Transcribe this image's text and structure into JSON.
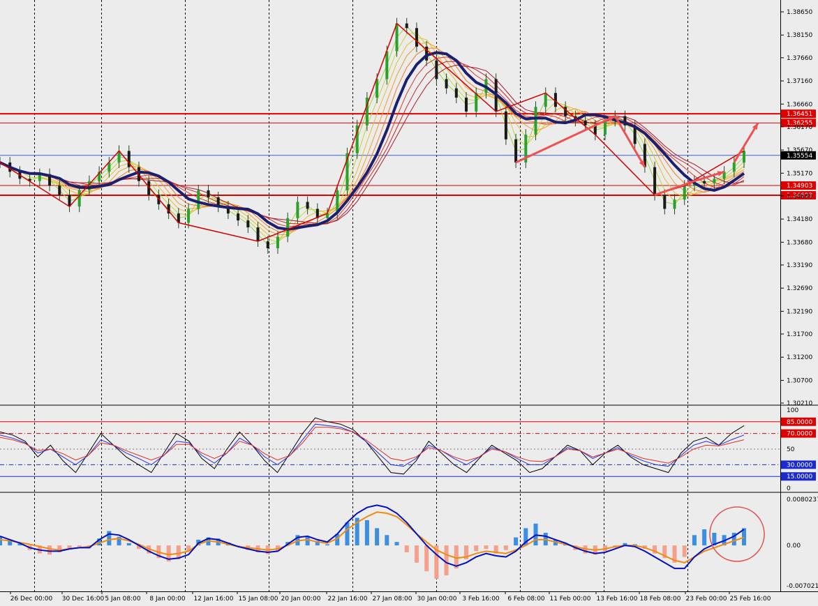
{
  "chart_data": [
    {
      "type": "candlestick",
      "symbol_panel": "price",
      "y_ticks": [
        "1.38650",
        "1.38150",
        "1.37660",
        "1.37160",
        "1.36660",
        "1.36170",
        "1.35670",
        "1.35170",
        "1.34680",
        "1.34180",
        "1.33680",
        "1.33190",
        "1.32690",
        "1.32190",
        "1.31700",
        "1.31200",
        "1.30700",
        "1.30210"
      ],
      "ylim": [
        1.3021,
        1.3865
      ],
      "current_price": "1.35554",
      "levels": [
        {
          "label": "1.36451",
          "value": 1.36451,
          "style": "thick"
        },
        {
          "label": "1.36255",
          "value": 1.36255,
          "style": "thin"
        },
        {
          "label": "1.34903",
          "value": 1.34903,
          "style": "thin"
        },
        {
          "label": "1.34693",
          "value": 1.34693,
          "style": "thick"
        }
      ],
      "x_labels": [
        "26 Dec 00:00",
        "30 Dec 16:00",
        "5 Jan 08:00",
        "8 Jan 00:00",
        "12 Jan 16:00",
        "15 Jan 08:00",
        "20 Jan 00:00",
        "22 Jan 16:00",
        "27 Jan 08:00",
        "30 Jan 00:00",
        "3 Feb 16:00",
        "6 Feb 08:00",
        "11 Feb 00:00",
        "13 Feb 16:00",
        "18 Feb 08:00",
        "23 Feb 00:00",
        "25 Feb 16:00"
      ],
      "close_series": [
        1.354,
        1.352,
        1.3505,
        1.35,
        1.3515,
        1.349,
        1.347,
        1.3445,
        1.348,
        1.35,
        1.352,
        1.354,
        1.3565,
        1.353,
        1.35,
        1.347,
        1.345,
        1.343,
        1.341,
        1.344,
        1.348,
        1.3465,
        1.3445,
        1.343,
        1.3415,
        1.34,
        1.337,
        1.3355,
        1.338,
        1.342,
        1.3455,
        1.344,
        1.342,
        1.343,
        1.348,
        1.356,
        1.362,
        1.368,
        1.372,
        1.378,
        1.384,
        1.383,
        1.379,
        1.376,
        1.372,
        1.37,
        1.368,
        1.365,
        1.369,
        1.372,
        1.365,
        1.359,
        1.354,
        1.36,
        1.366,
        1.369,
        1.366,
        1.364,
        1.363,
        1.362,
        1.36,
        1.363,
        1.364,
        1.362,
        1.358,
        1.353,
        1.347,
        1.344,
        1.346,
        1.349,
        1.35,
        1.3495,
        1.3505,
        1.352,
        1.354,
        1.3565
      ]
    },
    {
      "type": "line",
      "symbol_panel": "stochastic",
      "y_ticks": [
        "100",
        "50",
        "0"
      ],
      "ylim": [
        0,
        100
      ],
      "levels": [
        {
          "label": "85.0000",
          "value": 85
        },
        {
          "label": "70.0000",
          "value": 70
        },
        {
          "label": "30.0000",
          "value": 30
        },
        {
          "label": "15.0000",
          "value": 15
        }
      ],
      "series_black": [
        72,
        68,
        60,
        40,
        55,
        35,
        20,
        45,
        70,
        55,
        40,
        30,
        20,
        45,
        70,
        60,
        38,
        25,
        50,
        72,
        55,
        35,
        20,
        45,
        70,
        90,
        85,
        82,
        75,
        60,
        40,
        20,
        18,
        35,
        60,
        45,
        30,
        20,
        38,
        55,
        45,
        35,
        20,
        25,
        40,
        55,
        48,
        30,
        45,
        55,
        40,
        30,
        25,
        20,
        45,
        60,
        65,
        55,
        70,
        80
      ],
      "series_blue": [
        68,
        64,
        58,
        45,
        50,
        40,
        30,
        42,
        62,
        55,
        45,
        38,
        30,
        42,
        60,
        58,
        42,
        32,
        45,
        64,
        55,
        40,
        30,
        42,
        62,
        82,
        80,
        78,
        72,
        60,
        45,
        30,
        28,
        38,
        55,
        48,
        38,
        30,
        40,
        52,
        47,
        38,
        30,
        30,
        40,
        52,
        48,
        38,
        45,
        52,
        42,
        35,
        30,
        28,
        42,
        55,
        60,
        55,
        62,
        68
      ],
      "series_red": [
        65,
        62,
        57,
        48,
        50,
        44,
        36,
        42,
        58,
        55,
        48,
        42,
        36,
        42,
        56,
        56,
        45,
        38,
        45,
        60,
        55,
        44,
        36,
        42,
        58,
        78,
        78,
        76,
        72,
        62,
        50,
        38,
        35,
        40,
        52,
        48,
        40,
        35,
        40,
        50,
        47,
        40,
        35,
        34,
        40,
        50,
        48,
        40,
        45,
        50,
        44,
        38,
        35,
        32,
        40,
        50,
        55,
        54,
        58,
        62
      ]
    },
    {
      "type": "histogram",
      "symbol_panel": "macd",
      "y_ticks": [
        "0.0080237",
        "0.00",
        "-0.007021"
      ],
      "ylim": [
        -0.007021,
        0.0080237
      ],
      "histogram": [
        0.0015,
        0.001,
        0.0003,
        -0.0008,
        -0.0014,
        -0.0016,
        -0.0012,
        -0.0006,
        -0.0002,
        -0.0005,
        0.0012,
        0.0025,
        0.0015,
        0.0004,
        -0.0006,
        -0.0014,
        -0.0022,
        -0.0028,
        -0.0024,
        -0.001,
        0.001,
        0.0014,
        0.0012,
        0.0005,
        -0.0002,
        -0.0008,
        -0.0012,
        -0.0015,
        -0.001,
        0.0006,
        0.0018,
        0.0016,
        0.0008,
        0.0002,
        0.002,
        0.004,
        0.0048,
        0.0044,
        0.003,
        0.0018,
        0.0006,
        -0.0012,
        -0.003,
        -0.0045,
        -0.0058,
        -0.0052,
        -0.004,
        -0.0024,
        -0.001,
        -0.0006,
        -0.0014,
        -0.0008,
        0.0014,
        0.003,
        0.0038,
        0.0022,
        0.001,
        0.0004,
        -0.0008,
        -0.0014,
        -0.0016,
        -0.001,
        -0.0004,
        0.0004,
        0.0002,
        -0.0006,
        -0.0014,
        -0.0022,
        -0.003,
        -0.002,
        0.0018,
        0.0028,
        0.0022,
        0.0018,
        0.0022,
        0.003
      ],
      "signal_line": [
        0.001,
        0.0008,
        0.0005,
        0.0002,
        -0.0002,
        -0.0006,
        -0.0008,
        -0.0006,
        -0.0004,
        -0.0002,
        0.0004,
        0.001,
        0.0012,
        0.0008,
        0.0002,
        -0.0006,
        -0.0012,
        -0.0016,
        -0.0014,
        -0.001,
        0.0002,
        0.0008,
        0.0006,
        0.0002,
        -0.0002,
        -0.0004,
        -0.0006,
        -0.0008,
        -0.0006,
        0.0,
        0.0008,
        0.001,
        0.0006,
        0.0004,
        0.0012,
        0.0028,
        0.004,
        0.005,
        0.0058,
        0.0056,
        0.005,
        0.0036,
        0.002,
        0.0006,
        -0.0008,
        -0.0016,
        -0.0022,
        -0.002,
        -0.0014,
        -0.001,
        -0.0012,
        -0.0014,
        -0.0008,
        0.0,
        0.001,
        0.001,
        0.0006,
        0.0002,
        -0.0002,
        -0.0006,
        -0.0008,
        -0.0006,
        -0.0002,
        0.0,
        0.0,
        -0.0004,
        -0.001,
        -0.0018,
        -0.0026,
        -0.003,
        -0.002,
        -0.001,
        -0.0004,
        0.0002,
        0.0008,
        0.0014
      ],
      "macd_line": [
        0.0016,
        0.001,
        0.0004,
        -0.0004,
        -0.0008,
        -0.001,
        -0.001,
        -0.0006,
        -0.0004,
        -0.0004,
        0.001,
        0.002,
        0.0018,
        0.001,
        0.0,
        -0.001,
        -0.0018,
        -0.0024,
        -0.0022,
        -0.0016,
        0.0004,
        0.0012,
        0.001,
        0.0004,
        -0.0002,
        -0.0006,
        -0.001,
        -0.0012,
        -0.001,
        0.0002,
        0.0014,
        0.0016,
        0.001,
        0.0006,
        0.002,
        0.004,
        0.0056,
        0.0066,
        0.007,
        0.0066,
        0.0056,
        0.004,
        0.002,
        0.0,
        -0.0016,
        -0.003,
        -0.0036,
        -0.003,
        -0.002,
        -0.0014,
        -0.0018,
        -0.002,
        -0.001,
        0.0006,
        0.0018,
        0.0016,
        0.001,
        0.0004,
        -0.0004,
        -0.001,
        -0.0014,
        -0.0012,
        -0.0006,
        0.0,
        -0.0002,
        -0.001,
        -0.002,
        -0.003,
        -0.004,
        -0.004,
        -0.002,
        -0.0006,
        0.0002,
        0.0008,
        0.0016,
        0.0028
      ]
    }
  ],
  "colors": {
    "background": "#ececec",
    "price_level": "#e00000",
    "current_price": "#3a63c8",
    "slow_ma": "#1b1f6e",
    "zigzag": "#d40000",
    "arrow": "#f05050",
    "histogram_up": "#3b8ee0",
    "histogram_down": "#f4a08c",
    "macd": "#0010c0",
    "signal": "#f08a10",
    "stoch_black": "#000000",
    "stoch_blue": "#2030e0",
    "stoch_red": "#e03020"
  }
}
